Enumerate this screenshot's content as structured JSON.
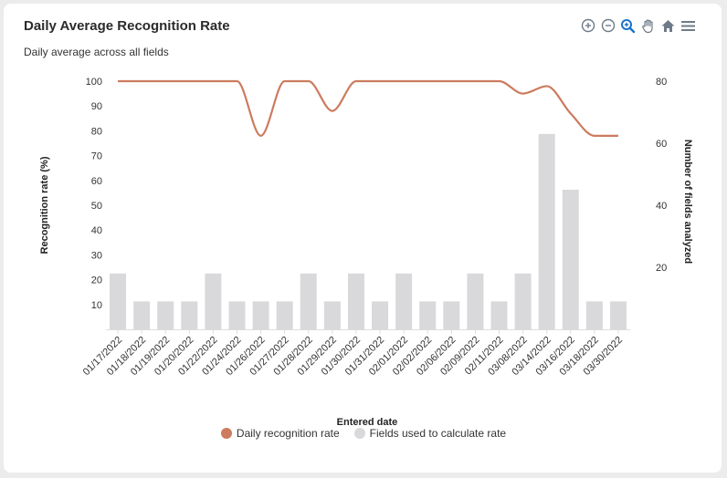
{
  "header": {
    "title": "Daily Average Recognition Rate",
    "subtitle": "Daily average across all fields"
  },
  "toolbar": {
    "icons": [
      "zoom-in-icon",
      "zoom-out-icon",
      "zoom-selection-icon",
      "pan-icon",
      "home-icon",
      "menu-icon"
    ],
    "active_color": "#1a73c8",
    "icon_color": "#6e7b88"
  },
  "chart_data": {
    "type": "bar",
    "categories": [
      "01/17/2022",
      "01/18/2022",
      "01/19/2022",
      "01/20/2022",
      "01/22/2022",
      "01/24/2022",
      "01/26/2022",
      "01/27/2022",
      "01/28/2022",
      "01/29/2022",
      "01/30/2022",
      "01/31/2022",
      "02/01/2022",
      "02/02/2022",
      "02/06/2022",
      "02/09/2022",
      "02/11/2022",
      "03/08/2022",
      "03/14/2022",
      "03/16/2022",
      "03/18/2022",
      "03/30/2022"
    ],
    "series": [
      {
        "name": "Daily recognition rate",
        "type": "line",
        "axis": "left",
        "color": "#cc7b5e",
        "values": [
          100,
          100,
          100,
          100,
          100,
          100,
          78,
          100,
          100,
          88,
          100,
          100,
          100,
          100,
          100,
          100,
          100,
          95,
          98,
          87,
          78,
          78
        ]
      },
      {
        "name": "Fields used to calculate rate",
        "type": "bar",
        "axis": "right",
        "color": "#d9d9dc",
        "values": [
          18,
          9,
          9,
          9,
          18,
          9,
          9,
          9,
          18,
          9,
          18,
          9,
          18,
          9,
          9,
          18,
          9,
          18,
          63,
          45,
          9,
          9
        ]
      }
    ],
    "xlabel": "Entered date",
    "ylabel": "Recognition rate (%)",
    "y2label": "Number of fields analyzed",
    "ylim": [
      0,
      100
    ],
    "yticks": [
      10,
      20,
      30,
      40,
      50,
      60,
      70,
      80,
      90,
      100
    ],
    "y2lim": [
      0,
      80
    ],
    "y2ticks": [
      20,
      40,
      60,
      80
    ],
    "legend_position": "bottom-center"
  }
}
